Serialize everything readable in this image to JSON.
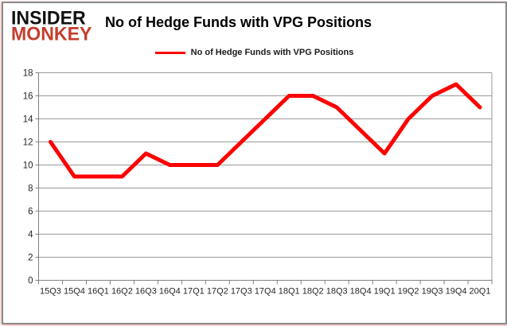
{
  "logo": {
    "line1": "INSIDER",
    "line2": "MONKEY"
  },
  "header": {
    "title": "No of Hedge Funds with VPG Positions"
  },
  "legend": {
    "label": "No of Hedge Funds with VPG Positions"
  },
  "colors": {
    "series_red": "#fe0000",
    "logo_red": "#c43d2b",
    "logo_black": "#111111",
    "grid_gray": "#999999",
    "axis_gray": "#808080",
    "label_dark": "#262626"
  },
  "chart_data": {
    "type": "line",
    "title": "No of Hedge Funds with VPG Positions",
    "categories": [
      "15Q3",
      "15Q4",
      "16Q1",
      "16Q2",
      "16Q3",
      "16Q4",
      "17Q1",
      "17Q2",
      "17Q3",
      "17Q4",
      "18Q1",
      "18Q2",
      "18Q3",
      "18Q4",
      "19Q1",
      "19Q2",
      "19Q3",
      "19Q4",
      "20Q1"
    ],
    "series": [
      {
        "name": "No of Hedge Funds with VPG Positions",
        "values": [
          12,
          9,
          9,
          9,
          11,
          10,
          10,
          10,
          12,
          14,
          16,
          16,
          15,
          13,
          11,
          14,
          16,
          17,
          15
        ]
      }
    ],
    "ylim": [
      0,
      18
    ],
    "ytick_step": 2,
    "grid": "horizontal",
    "legend_position": "top-center",
    "xlabel": "",
    "ylabel": ""
  }
}
